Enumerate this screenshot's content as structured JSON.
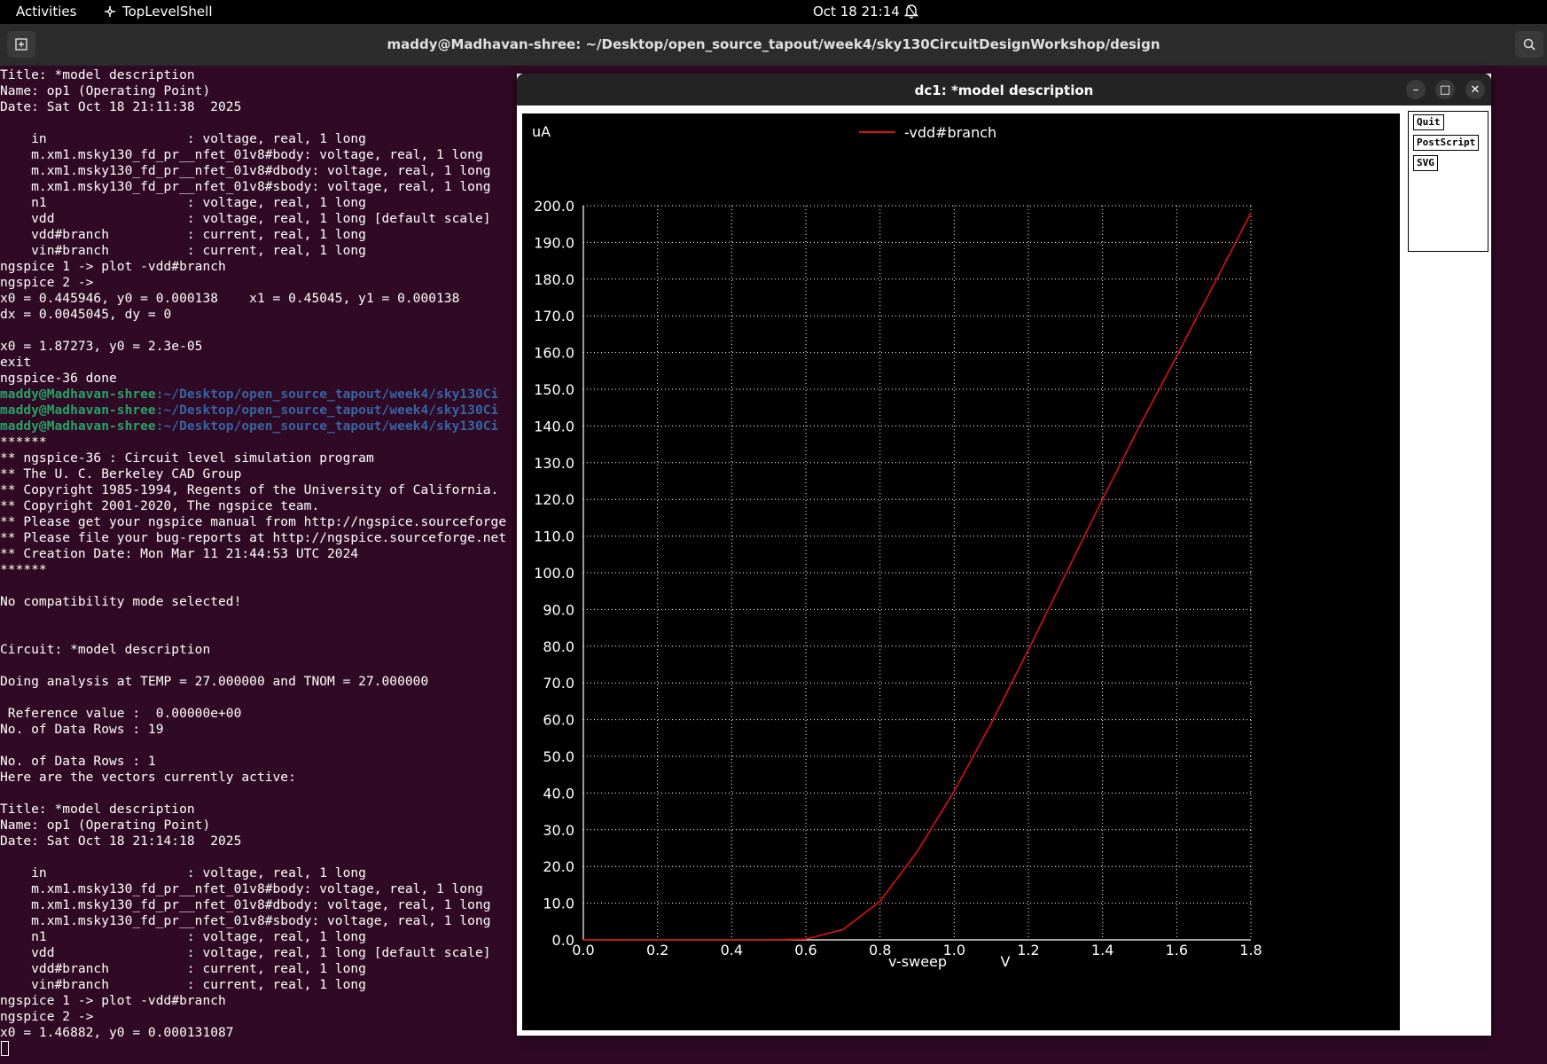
{
  "topbar": {
    "activities": "Activities",
    "app_name": "TopLevelShell",
    "clock": "Oct 18  21:14"
  },
  "terminal": {
    "title": "maddy@Madhavan-shree: ~/Desktop/open_source_tapout/week4/sky130CircuitDesignWorkshop/design",
    "lines": [
      "Title: *model description",
      "Name: op1 (Operating Point)",
      "Date: Sat Oct 18 21:11:38  2025",
      "",
      "    in                  : voltage, real, 1 long",
      "    m.xm1.msky130_fd_pr__nfet_01v8#body: voltage, real, 1 long",
      "    m.xm1.msky130_fd_pr__nfet_01v8#dbody: voltage, real, 1 long",
      "    m.xm1.msky130_fd_pr__nfet_01v8#sbody: voltage, real, 1 long",
      "    n1                  : voltage, real, 1 long",
      "    vdd                 : voltage, real, 1 long [default scale]",
      "    vdd#branch          : current, real, 1 long",
      "    vin#branch          : current, real, 1 long",
      "ngspice 1 -> plot -vdd#branch",
      "ngspice 2 ->",
      "x0 = 0.445946, y0 = 0.000138    x1 = 0.45045, y1 = 0.000138",
      "dx = 0.0045045, dy = 0",
      "",
      "x0 = 1.87273, y0 = 2.3e-05",
      "exit",
      "ngspice-36 done",
      {
        "prompt_user": "maddy@Madhavan-shree",
        "prompt_path": ":~/Desktop/open_source_tapout/week4/sky130Ci"
      },
      {
        "prompt_user": "maddy@Madhavan-shree",
        "prompt_path": ":~/Desktop/open_source_tapout/week4/sky130Ci"
      },
      {
        "prompt_user": "maddy@Madhavan-shree",
        "prompt_path": ":~/Desktop/open_source_tapout/week4/sky130Ci"
      },
      "******",
      "** ngspice-36 : Circuit level simulation program",
      "** The U. C. Berkeley CAD Group",
      "** Copyright 1985-1994, Regents of the University of California.",
      "** Copyright 2001-2020, The ngspice team.",
      "** Please get your ngspice manual from http://ngspice.sourceforge",
      "** Please file your bug-reports at http://ngspice.sourceforge.net",
      "** Creation Date: Mon Mar 11 21:44:53 UTC 2024",
      "******",
      "",
      "No compatibility mode selected!",
      "",
      "",
      "Circuit: *model description",
      "",
      "Doing analysis at TEMP = 27.000000 and TNOM = 27.000000",
      "",
      " Reference value :  0.00000e+00",
      "No. of Data Rows : 19",
      "",
      "No. of Data Rows : 1",
      "Here are the vectors currently active:",
      "",
      "Title: *model description",
      "Name: op1 (Operating Point)",
      "Date: Sat Oct 18 21:14:18  2025",
      "",
      "    in                  : voltage, real, 1 long",
      "    m.xm1.msky130_fd_pr__nfet_01v8#body: voltage, real, 1 long",
      "    m.xm1.msky130_fd_pr__nfet_01v8#dbody: voltage, real, 1 long",
      "    m.xm1.msky130_fd_pr__nfet_01v8#sbody: voltage, real, 1 long",
      "    n1                  : voltage, real, 1 long",
      "    vdd                 : voltage, real, 1 long [default scale]",
      "    vdd#branch          : current, real, 1 long",
      "    vin#branch          : current, real, 1 long",
      "ngspice 1 -> plot -vdd#branch",
      "ngspice 2 ->",
      "x0 = 1.46882, y0 = 0.000131087"
    ]
  },
  "plot_window": {
    "title": "dc1: *model description",
    "buttons": [
      "Quit",
      "PostScript",
      "SVG"
    ]
  },
  "chart_data": {
    "type": "line",
    "ylabel": "uA",
    "xlabel": "v-sweep",
    "xunit": "V",
    "xlim": [
      0,
      1.8
    ],
    "ylim": [
      0,
      200
    ],
    "xticks": [
      "0.0",
      "0.2",
      "0.4",
      "0.6",
      "0.8",
      "1.0",
      "1.2",
      "1.4",
      "1.6",
      "1.8"
    ],
    "yticks": [
      "0.0",
      "10.0",
      "20.0",
      "30.0",
      "40.0",
      "50.0",
      "60.0",
      "70.0",
      "80.0",
      "90.0",
      "100.0",
      "110.0",
      "120.0",
      "130.0",
      "140.0",
      "150.0",
      "160.0",
      "170.0",
      "180.0",
      "190.0",
      "200.0"
    ],
    "grid": true,
    "legend_position": "top-center",
    "series": [
      {
        "name": "-vdd#branch",
        "color": "#e01010",
        "x": [
          0.0,
          0.1,
          0.2,
          0.3,
          0.4,
          0.5,
          0.6,
          0.7,
          0.8,
          0.9,
          1.0,
          1.1,
          1.2,
          1.3,
          1.4,
          1.5,
          1.6,
          1.7,
          1.8
        ],
        "y": [
          0.0,
          0.0,
          0.0,
          0.0,
          0.0,
          0.0,
          0.2,
          2.8,
          10.5,
          24.0,
          40.5,
          59.0,
          79.0,
          99.5,
          120.0,
          140.0,
          159.0,
          178.5,
          198.0
        ]
      }
    ]
  },
  "colors": {
    "terminal_bg": "#300a24",
    "prompt_user": "#26a269",
    "prompt_path": "#3465a4",
    "trace": "#e01010"
  }
}
